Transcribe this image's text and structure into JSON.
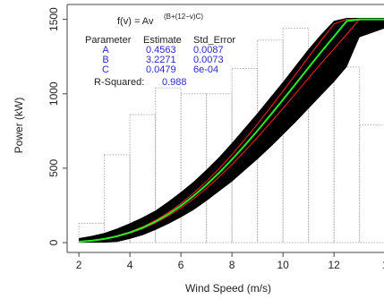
{
  "chart_data": {
    "type": "line",
    "xlabel": "Wind Speed (m/s)",
    "ylabel": "Power (kW)",
    "xlim": [
      1.54,
      13.96
    ],
    "ylim": [
      -66,
      1600
    ],
    "xticks": [
      2,
      4,
      6,
      8,
      10,
      12,
      {
        "value": 14,
        "label": "1"
      }
    ],
    "yticks": [
      0,
      500,
      1000,
      1500
    ],
    "x": [
      2,
      2.5,
      3,
      3.5,
      4,
      4.5,
      5,
      5.5,
      6,
      6.5,
      7,
      7.5,
      8,
      8.5,
      9,
      9.5,
      10,
      10.5,
      11,
      11.5,
      12,
      12.5,
      13,
      14
    ],
    "band": {
      "color": "#000000",
      "lower": [
        0,
        0,
        0,
        5,
        25,
        50,
        85,
        125,
        170,
        220,
        280,
        345,
        410,
        485,
        560,
        640,
        725,
        810,
        900,
        990,
        1080,
        1180,
        1380,
        1440
      ],
      "upper": [
        30,
        45,
        65,
        95,
        130,
        170,
        215,
        275,
        340,
        410,
        490,
        575,
        670,
        770,
        870,
        975,
        1080,
        1190,
        1300,
        1400,
        1490,
        1510,
        1510,
        1510
      ]
    },
    "series": [
      {
        "color": "#ff2020",
        "values": [
          6,
          14,
          27,
          46,
          72,
          106,
          149,
          201,
          263,
          333,
          411,
          498,
          591,
          692,
          797,
          906,
          1018,
          1131,
          1246,
          1359,
          1468,
          1500,
          1500,
          1500
        ]
      },
      {
        "color": "#ff2020",
        "values": [
          6,
          12,
          24,
          40,
          64,
          94,
          133,
          179,
          233,
          295,
          365,
          442,
          525,
          614,
          707,
          804,
          902,
          1003,
          1105,
          1205,
          1302,
          1400,
          1500,
          1500
        ]
      },
      {
        "color": "#22ee22",
        "values": [
          6,
          13,
          25,
          43,
          68,
          100,
          141,
          190,
          248,
          314,
          388,
          470,
          558,
          653,
          752,
          855,
          960,
          1067,
          1175,
          1282,
          1385,
          1489,
          1500,
          1500
        ]
      }
    ],
    "histogram": {
      "color": "#b0b0b0",
      "bins": [
        2,
        3,
        4,
        5,
        6,
        7,
        8,
        9,
        10,
        11,
        12,
        13,
        14
      ],
      "counts": [
        130,
        590,
        860,
        1040,
        1000,
        1000,
        1170,
        1360,
        1440,
        1270,
        1180,
        790
      ]
    },
    "annotations": {
      "formula": "f(v) = Av",
      "formula_exponent": "(B+(12−v)C)",
      "table_header": [
        "Parameter",
        "Estimate",
        "Std_Error"
      ],
      "table_rows": [
        [
          "A",
          "0.4563",
          "0.0087"
        ],
        [
          "B",
          "3.2271",
          "0.0073"
        ],
        [
          "C",
          "0.0479",
          "6e-04"
        ]
      ],
      "r_squared_label": "R-Squared:",
      "r_squared_value": "0.988"
    }
  }
}
